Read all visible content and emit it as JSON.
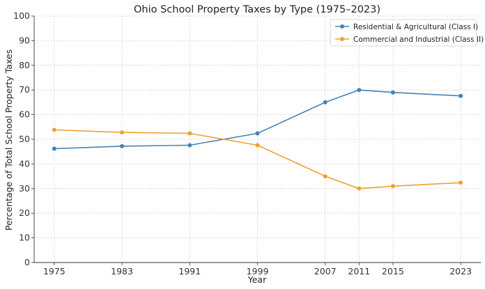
{
  "chart_data": {
    "type": "line",
    "title": "Ohio School Property Taxes by Type (1975–2023)",
    "xlabel": "Year",
    "ylabel": "Percentage of Total School Property Taxes",
    "categories": [
      "1975",
      "1983",
      "1991",
      "1999",
      "2007",
      "2011",
      "2015",
      "2023"
    ],
    "x": [
      1975,
      1983,
      1991,
      1999,
      2007,
      2011,
      2015,
      2023
    ],
    "ylim": [
      0,
      100
    ],
    "yticks": [
      0,
      10,
      20,
      30,
      40,
      50,
      60,
      70,
      80,
      90,
      100
    ],
    "grid": true,
    "legend_position": "top-right",
    "series": [
      {
        "name": "Residential & Agricultural (Class I)",
        "color": "#4682b4",
        "values": [
          46.2,
          47.2,
          47.6,
          52.4,
          65.0,
          70.0,
          69.0,
          67.6
        ]
      },
      {
        "name": "Commercial and Industrial (Class II)",
        "color": "#f0a030",
        "values": [
          53.8,
          52.8,
          52.4,
          47.6,
          35.0,
          30.0,
          31.0,
          32.4
        ]
      }
    ]
  }
}
